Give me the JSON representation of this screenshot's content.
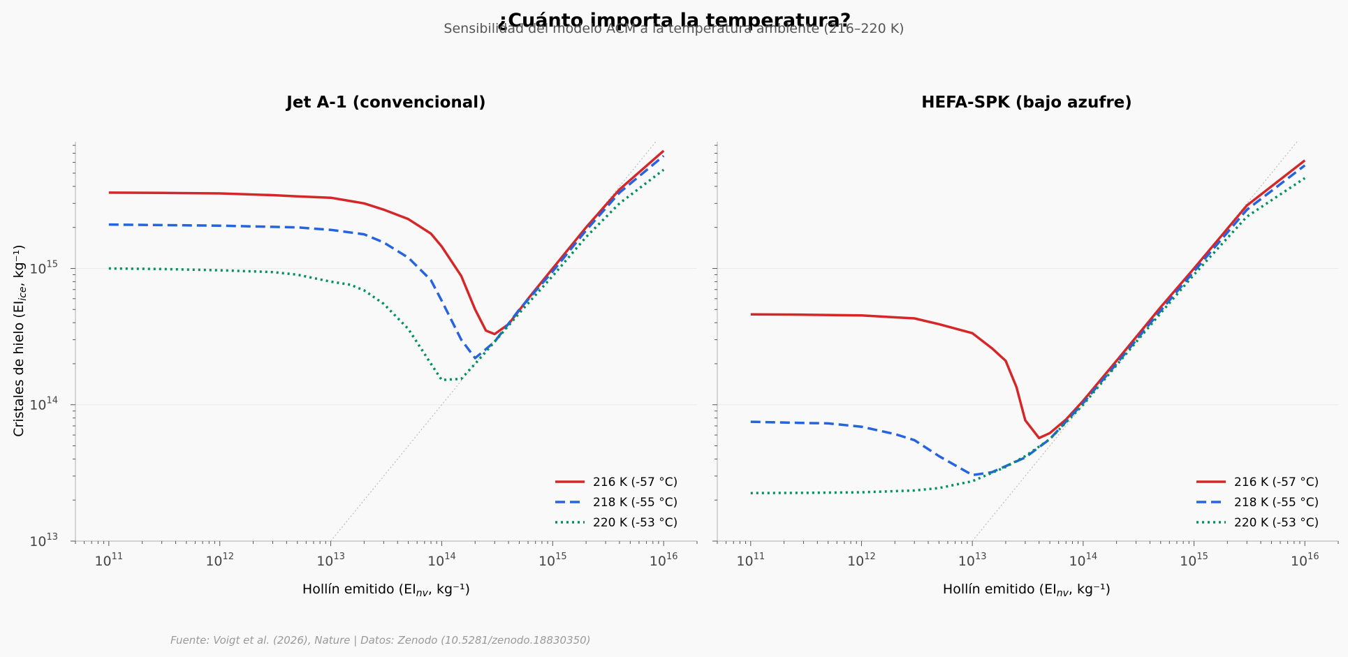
{
  "title": "¿Cuánto importa la temperatura?",
  "subtitle": "Sensibilidad del modelo ACM a la temperatura ambiente (216–220 K)",
  "source": "Fuente: Voigt et al. (2026), Nature | Datos: Zenodo (10.5281/zenodo.18830350)",
  "colors": {
    "216": "#d62728",
    "218": "#2563e0",
    "220": "#009060",
    "ref": "#bbbbbb"
  },
  "chart_data": [
    {
      "type": "line",
      "title": "Jet A-1 (convencional)",
      "xlabel": "Hollín emitido (EI",
      "xlabel_sub": "nv",
      "xlabel_end": ", kg⁻¹)",
      "ylabel": "Cristales de hielo (EI",
      "ylabel_sub": "ice",
      "ylabel_end": ", kg⁻¹)",
      "xscale": "log",
      "yscale": "log",
      "xlim": [
        50000000000.0,
        2e+16
      ],
      "ylim": [
        10000000000000.0,
        8500000000000000.0
      ],
      "xticks": [
        {
          "base": "10",
          "exp": "11"
        },
        {
          "base": "10",
          "exp": "12"
        },
        {
          "base": "10",
          "exp": "13"
        },
        {
          "base": "10",
          "exp": "14"
        },
        {
          "base": "10",
          "exp": "15"
        },
        {
          "base": "10",
          "exp": "16"
        }
      ],
      "yticks": [
        {
          "base": "10",
          "exp": "13"
        },
        {
          "base": "10",
          "exp": "14"
        },
        {
          "base": "10",
          "exp": "15"
        }
      ],
      "legend_position": "lower-right",
      "reference_line": "1:1",
      "series": [
        {
          "name": "216 K (-57 °C)",
          "style": "solid",
          "color_key": "216",
          "x": [
            100000000000.0,
            300000000000.0,
            1000000000000.0,
            3000000000000.0,
            5000000000000.0,
            10000000000000.0,
            20000000000000.0,
            30000000000000.0,
            50000000000000.0,
            80000000000000.0,
            100000000000000.0,
            150000000000000.0,
            200000000000000.0,
            250000000000000.0,
            300000000000000.0,
            400000000000000.0,
            600000000000000.0,
            1000000000000000.0,
            2000000000000000.0,
            4000000000000000.0,
            1e+16
          ],
          "y": [
            3600000000000000.0,
            3580000000000000.0,
            3550000000000000.0,
            3450000000000000.0,
            3380000000000000.0,
            3300000000000000.0,
            3000000000000000.0,
            2700000000000000.0,
            2300000000000000.0,
            1800000000000000.0,
            1450000000000000.0,
            880000000000000.0,
            500000000000000.0,
            350000000000000.0,
            330000000000000.0,
            390000000000000.0,
            600000000000000.0,
            1000000000000000.0,
            2000000000000000.0,
            3800000000000000.0,
            7300000000000000.0
          ]
        },
        {
          "name": "218 K (-55 °C)",
          "style": "dashed",
          "color_key": "218",
          "x": [
            100000000000.0,
            300000000000.0,
            1000000000000.0,
            3000000000000.0,
            5000000000000.0,
            10000000000000.0,
            20000000000000.0,
            30000000000000.0,
            50000000000000.0,
            80000000000000.0,
            100000000000000.0,
            150000000000000.0,
            200000000000000.0,
            300000000000000.0,
            500000000000000.0,
            1000000000000000.0,
            2000000000000000.0,
            4000000000000000.0,
            1e+16
          ],
          "y": [
            2100000000000000.0,
            2080000000000000.0,
            2060000000000000.0,
            2020000000000000.0,
            2000000000000000.0,
            1920000000000000.0,
            1780000000000000.0,
            1550000000000000.0,
            1200000000000000.0,
            820000000000000.0,
            580000000000000.0,
            300000000000000.0,
            220000000000000.0,
            290000000000000.0,
            500000000000000.0,
            950000000000000.0,
            1900000000000000.0,
            3600000000000000.0,
            6700000000000000.0
          ]
        },
        {
          "name": "220 K (-53 °C)",
          "style": "dotted",
          "color_key": "220",
          "x": [
            100000000000.0,
            300000000000.0,
            1000000000000.0,
            3000000000000.0,
            5000000000000.0,
            10000000000000.0,
            15000000000000.0,
            20000000000000.0,
            30000000000000.0,
            50000000000000.0,
            80000000000000.0,
            100000000000000.0,
            150000000000000.0,
            200000000000000.0,
            300000000000000.0,
            500000000000000.0,
            1000000000000000.0,
            2000000000000000.0,
            4000000000000000.0,
            1e+16
          ],
          "y": [
            1000000000000000.0,
            990000000000000.0,
            970000000000000.0,
            940000000000000.0,
            900000000000000.0,
            800000000000000.0,
            760000000000000.0,
            690000000000000.0,
            550000000000000.0,
            360000000000000.0,
            200000000000000.0,
            152000000000000.0,
            155000000000000.0,
            200000000000000.0,
            290000000000000.0,
            470000000000000.0,
            880000000000000.0,
            1700000000000000.0,
            3000000000000000.0,
            5300000000000000.0
          ]
        }
      ]
    },
    {
      "type": "line",
      "title": "HEFA-SPK (bajo azufre)",
      "xlabel": "Hollín emitido (EI",
      "xlabel_sub": "nv",
      "xlabel_end": ", kg⁻¹)",
      "xscale": "log",
      "yscale": "log",
      "xlim": [
        50000000000.0,
        2e+16
      ],
      "ylim": [
        10000000000000.0,
        8500000000000000.0
      ],
      "xticks": [
        {
          "base": "10",
          "exp": "11"
        },
        {
          "base": "10",
          "exp": "12"
        },
        {
          "base": "10",
          "exp": "13"
        },
        {
          "base": "10",
          "exp": "14"
        },
        {
          "base": "10",
          "exp": "15"
        },
        {
          "base": "10",
          "exp": "16"
        }
      ],
      "legend_position": "lower-right",
      "reference_line": "1:1",
      "series": [
        {
          "name": "216 K (-57 °C)",
          "style": "solid",
          "color_key": "216",
          "x": [
            100000000000.0,
            300000000000.0,
            1000000000000.0,
            3000000000000.0,
            5000000000000.0,
            10000000000000.0,
            15000000000000.0,
            20000000000000.0,
            25000000000000.0,
            30000000000000.0,
            40000000000000.0,
            50000000000000.0,
            70000000000000.0,
            100000000000000.0,
            200000000000000.0,
            500000000000000.0,
            1000000000000000.0,
            3000000000000000.0,
            1e+16
          ],
          "y": [
            460000000000000.0,
            458000000000000.0,
            452000000000000.0,
            430000000000000.0,
            390000000000000.0,
            335000000000000.0,
            260000000000000.0,
            210000000000000.0,
            135000000000000.0,
            77000000000000.0,
            57000000000000.0,
            62000000000000.0,
            78000000000000.0,
            107000000000000.0,
            210000000000000.0,
            520000000000000.0,
            1000000000000000.0,
            2900000000000000.0,
            6200000000000000.0
          ]
        },
        {
          "name": "218 K (-55 °C)",
          "style": "dashed",
          "color_key": "218",
          "x": [
            100000000000.0,
            300000000000.0,
            500000000000.0,
            1000000000000.0,
            2000000000000.0,
            3000000000000.0,
            5000000000000.0,
            10000000000000.0,
            15000000000000.0,
            20000000000000.0,
            30000000000000.0,
            50000000000000.0,
            100000000000000.0,
            200000000000000.0,
            500000000000000.0,
            1000000000000000.0,
            3000000000000000.0,
            1e+16
          ],
          "y": [
            75000000000000.0,
            73500000000000.0,
            73000000000000.0,
            69000000000000.0,
            61000000000000.0,
            55000000000000.0,
            42000000000000.0,
            30500000000000.0,
            32000000000000.0,
            35500000000000.0,
            41000000000000.0,
            56000000000000.0,
            103000000000000.0,
            200000000000000.0,
            490000000000000.0,
            950000000000000.0,
            2700000000000000.0,
            5700000000000000.0
          ]
        },
        {
          "name": "220 K (-53 °C)",
          "style": "dotted",
          "color_key": "220",
          "x": [
            100000000000.0,
            300000000000.0,
            1000000000000.0,
            3000000000000.0,
            5000000000000.0,
            10000000000000.0,
            20000000000000.0,
            30000000000000.0,
            50000000000000.0,
            100000000000000.0,
            200000000000000.0,
            500000000000000.0,
            1000000000000000.0,
            3000000000000000.0,
            1e+16
          ],
          "y": [
            22500000000000.0,
            22600000000000.0,
            22800000000000.0,
            23500000000000.0,
            24500000000000.0,
            27500000000000.0,
            35000000000000.0,
            42000000000000.0,
            56000000000000.0,
            100000000000000.0,
            195000000000000.0,
            470000000000000.0,
            900000000000000.0,
            2400000000000000.0,
            4600000000000000.0
          ]
        }
      ]
    }
  ]
}
